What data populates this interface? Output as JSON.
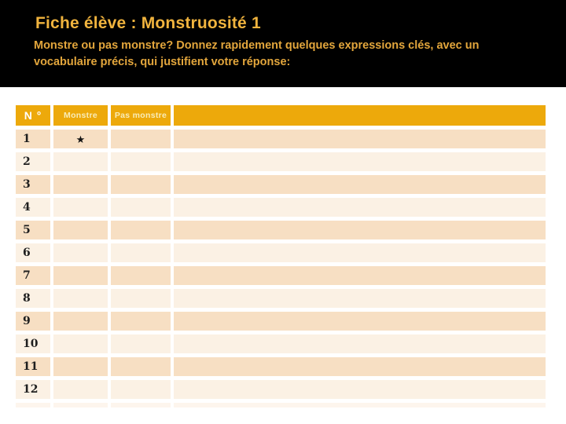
{
  "slide": {
    "title": "Fiche élève : Monstruosité 1",
    "subtitle_line1": "Monstre ou pas monstre? Donnez rapidement quelques expressions clés, avec un",
    "subtitle_line2": "vocabulaire précis, qui justifient votre réponse:"
  },
  "table": {
    "headers": {
      "num": "N °",
      "monstre": "Monstre",
      "pas_monstre": "Pas monstre",
      "notes": ""
    },
    "rows": [
      {
        "num": "1",
        "monstre": "★",
        "pas_monstre": "",
        "notes": ""
      },
      {
        "num": "2",
        "monstre": "",
        "pas_monstre": "",
        "notes": ""
      },
      {
        "num": "3",
        "monstre": "",
        "pas_monstre": "",
        "notes": ""
      },
      {
        "num": "4",
        "monstre": "",
        "pas_monstre": "",
        "notes": ""
      },
      {
        "num": "5",
        "monstre": "",
        "pas_monstre": "",
        "notes": ""
      },
      {
        "num": "6",
        "monstre": "",
        "pas_monstre": "",
        "notes": ""
      },
      {
        "num": "7",
        "monstre": "",
        "pas_monstre": "",
        "notes": ""
      },
      {
        "num": "8",
        "monstre": "",
        "pas_monstre": "",
        "notes": ""
      },
      {
        "num": "9",
        "monstre": "",
        "pas_monstre": "",
        "notes": ""
      },
      {
        "num": "10",
        "monstre": "",
        "pas_monstre": "",
        "notes": ""
      },
      {
        "num": "11",
        "monstre": "",
        "pas_monstre": "",
        "notes": ""
      },
      {
        "num": "12",
        "monstre": "",
        "pas_monstre": "",
        "notes": ""
      }
    ]
  },
  "colors": {
    "band_background": "#000000",
    "title_gold": "#F1B43E",
    "subtitle_gold": "#E3A63C",
    "table_header_amber": "#EDA90B",
    "table_header_label": "#F8ECB8",
    "table_header_num_label": "#FFFFFF",
    "row_stripe_dark": "#F7DFC3",
    "row_stripe_light": "#FBF1E4",
    "row_number_text": "#1F1F1F",
    "star_black": "#141414"
  }
}
